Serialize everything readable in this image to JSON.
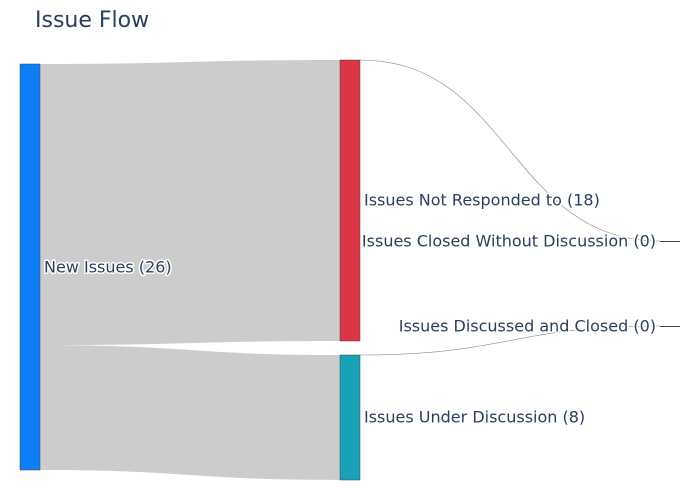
{
  "title": "Issue Flow",
  "chart_data": {
    "type": "sankey",
    "nodes": [
      {
        "id": "new",
        "label": "New Issues (26)",
        "color": "#0d7ff5"
      },
      {
        "id": "not_responded",
        "label": "Issues Not Responded to (18)",
        "color": "#dc3545"
      },
      {
        "id": "under_discussion",
        "label": "Issues Under Discussion (8)",
        "color": "#17a2b8"
      },
      {
        "id": "closed_without",
        "label": "Issues Closed Without Discussion (0)",
        "color": "#6c757d"
      },
      {
        "id": "discussed_closed",
        "label": "Issues Discussed and Closed (0)",
        "color": "#28a745"
      }
    ],
    "links": [
      {
        "source": "new",
        "target": "not_responded",
        "value": 18
      },
      {
        "source": "new",
        "target": "under_discussion",
        "value": 8
      },
      {
        "source": "not_responded",
        "target": "closed_without",
        "value": 0
      },
      {
        "source": "under_discussion",
        "target": "discussed_closed",
        "value": 0
      }
    ]
  }
}
